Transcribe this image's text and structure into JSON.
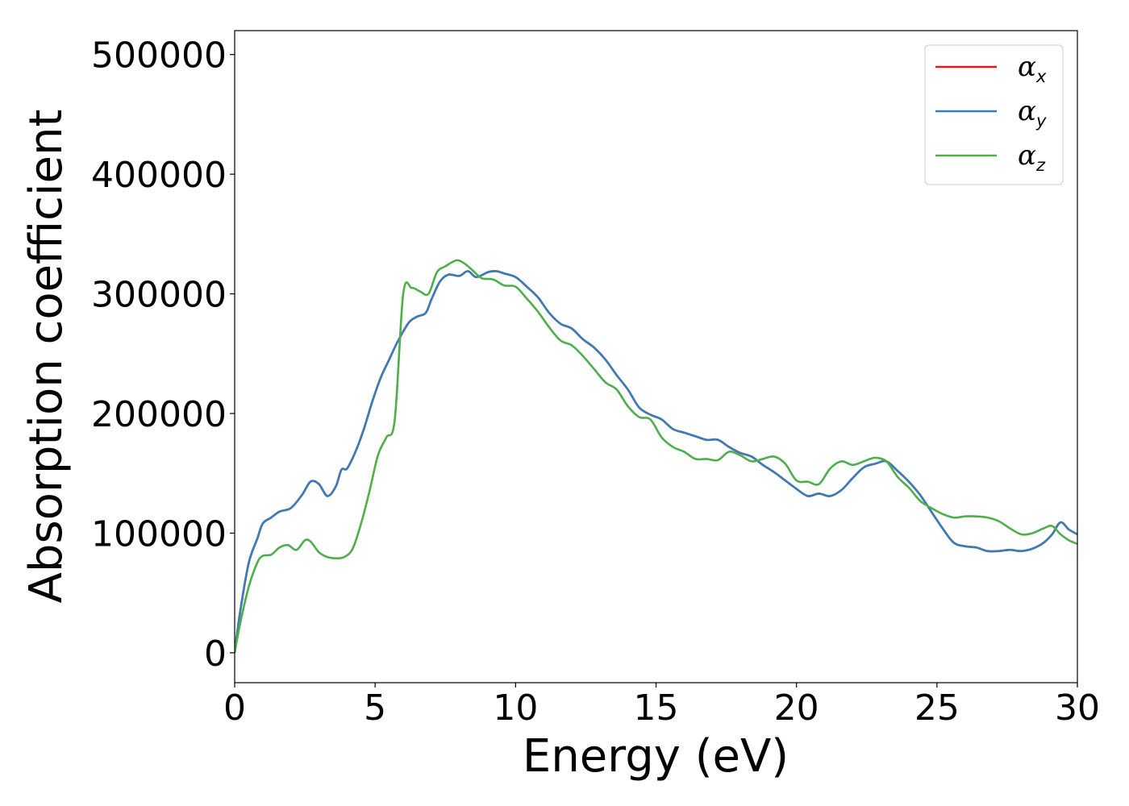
{
  "chart_data": {
    "type": "line",
    "title": "",
    "xlabel": "Energy (eV)",
    "ylabel": "Absorption coefficient",
    "xlim": [
      0,
      30
    ],
    "ylim": [
      -25000,
      520000
    ],
    "xticks": [
      0,
      5,
      10,
      15,
      20,
      25,
      30
    ],
    "yticks": [
      0,
      100000,
      200000,
      300000,
      400000,
      500000
    ],
    "grid": false,
    "legend_position": "top-right",
    "series": [
      {
        "name": "αx",
        "base": "α",
        "sub": "x",
        "color": "#e41a1c",
        "same_as": "αy"
      },
      {
        "name": "αy",
        "base": "α",
        "sub": "y",
        "color": "#377eb8",
        "x": [
          0,
          0.2,
          0.5,
          0.8,
          1.0,
          1.3,
          1.6,
          2.0,
          2.4,
          2.7,
          3.0,
          3.3,
          3.6,
          3.8,
          4.0,
          4.3,
          4.6,
          4.9,
          5.2,
          5.5,
          5.8,
          6.2,
          6.5,
          6.8,
          7.0,
          7.3,
          7.6,
          8.0,
          8.3,
          8.6,
          9.0,
          9.3,
          9.6,
          10.0,
          10.4,
          10.8,
          11.2,
          11.6,
          12.0,
          12.4,
          12.8,
          13.2,
          13.6,
          14.0,
          14.4,
          14.8,
          15.2,
          15.6,
          16.0,
          16.4,
          16.8,
          17.2,
          17.6,
          18.0,
          18.4,
          18.8,
          19.2,
          19.6,
          20.0,
          20.4,
          20.8,
          21.2,
          21.6,
          22.0,
          22.4,
          22.8,
          23.2,
          23.6,
          24.0,
          24.4,
          24.8,
          25.2,
          25.6,
          26.0,
          26.4,
          26.8,
          27.2,
          27.6,
          28.0,
          28.4,
          28.8,
          29.1,
          29.4,
          29.7,
          30.0
        ],
        "y": [
          0,
          35000,
          75000,
          95000,
          108000,
          113000,
          118000,
          121000,
          132000,
          143000,
          141000,
          131000,
          139000,
          153000,
          154000,
          168000,
          187000,
          210000,
          230000,
          245000,
          260000,
          276000,
          281000,
          284000,
          295000,
          310000,
          316000,
          315000,
          319000,
          314000,
          318000,
          319000,
          317000,
          314000,
          306000,
          297000,
          284000,
          275000,
          271000,
          262000,
          255000,
          245000,
          232000,
          220000,
          205000,
          199000,
          195000,
          187000,
          184000,
          181000,
          178000,
          178000,
          172000,
          167000,
          164000,
          157000,
          151000,
          144000,
          137000,
          131000,
          133000,
          131000,
          136000,
          146000,
          155000,
          158000,
          160000,
          152000,
          143000,
          132000,
          118000,
          104000,
          92000,
          89000,
          88000,
          85000,
          85000,
          86000,
          85000,
          87000,
          92000,
          99000,
          109000,
          103000,
          99000
        ]
      },
      {
        "name": "αz",
        "base": "α",
        "sub": "z",
        "color": "#4daf4a",
        "x": [
          0,
          0.2,
          0.5,
          0.8,
          1.0,
          1.3,
          1.6,
          1.9,
          2.2,
          2.5,
          2.7,
          3.0,
          3.3,
          3.6,
          3.9,
          4.2,
          4.5,
          4.8,
          5.1,
          5.4,
          5.7,
          6.0,
          6.3,
          6.6,
          6.9,
          7.2,
          7.5,
          7.9,
          8.2,
          8.5,
          8.8,
          9.2,
          9.6,
          10.0,
          10.4,
          10.8,
          11.2,
          11.6,
          12.0,
          12.4,
          12.8,
          13.2,
          13.6,
          14.0,
          14.4,
          14.8,
          15.2,
          15.6,
          16.0,
          16.4,
          16.8,
          17.2,
          17.6,
          18.0,
          18.4,
          18.8,
          19.2,
          19.6,
          20.0,
          20.4,
          20.8,
          21.2,
          21.6,
          22.0,
          22.4,
          22.8,
          23.2,
          23.6,
          24.0,
          24.4,
          24.8,
          25.2,
          25.6,
          26.0,
          26.4,
          26.8,
          27.2,
          27.6,
          28.0,
          28.4,
          28.8,
          29.1,
          29.4,
          29.7,
          30.0
        ],
        "y": [
          0,
          25000,
          55000,
          75000,
          81000,
          82000,
          88000,
          90000,
          86000,
          94000,
          93000,
          84000,
          80000,
          79000,
          80000,
          87000,
          108000,
          135000,
          165000,
          180000,
          195000,
          300000,
          305000,
          302000,
          300000,
          318000,
          323000,
          328000,
          325000,
          319000,
          313000,
          312000,
          307000,
          306000,
          296000,
          285000,
          272000,
          261000,
          257000,
          248000,
          237000,
          226000,
          220000,
          206000,
          197000,
          195000,
          180000,
          172000,
          168000,
          162000,
          162000,
          161000,
          168000,
          165000,
          160000,
          162000,
          164000,
          158000,
          144000,
          143000,
          141000,
          154000,
          160000,
          157000,
          160000,
          163000,
          160000,
          147000,
          138000,
          127000,
          121000,
          116000,
          113000,
          114000,
          114000,
          113000,
          110000,
          104000,
          99000,
          100000,
          104000,
          106000,
          99000,
          94000,
          91000
        ]
      }
    ]
  }
}
